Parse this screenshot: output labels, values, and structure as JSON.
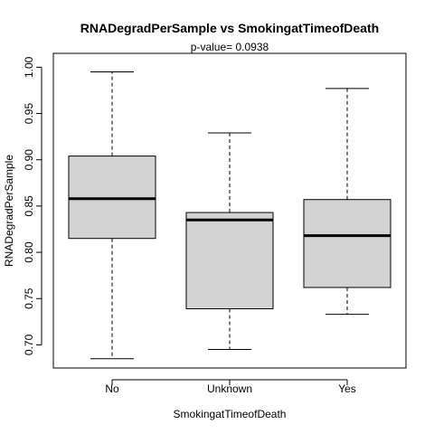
{
  "chart_data": {
    "type": "boxplot",
    "title": "RNADegradPerSample  vs  SmokingatTimeofDeath",
    "subtitle": "p-value= 0.0938",
    "xlabel": "SmokingatTimeofDeath",
    "ylabel": "RNADegradPerSample",
    "ylim": [
      0.675,
      1.015
    ],
    "yticks": [
      0.7,
      0.75,
      0.8,
      0.85,
      0.9,
      0.95,
      1.0
    ],
    "ytick_labels": [
      "0.70",
      "0.75",
      "0.80",
      "0.85",
      "0.90",
      "0.95",
      "1.00"
    ],
    "categories": [
      "No",
      "Unknown",
      "Yes"
    ],
    "boxes": [
      {
        "category": "No",
        "whisker_low": 0.685,
        "q1": 0.815,
        "median": 0.858,
        "q3": 0.904,
        "whisker_high": 0.995
      },
      {
        "category": "Unknown",
        "whisker_low": 0.695,
        "q1": 0.739,
        "median": 0.835,
        "q3": 0.843,
        "whisker_high": 0.929
      },
      {
        "category": "Yes",
        "whisker_low": 0.733,
        "q1": 0.762,
        "median": 0.818,
        "q3": 0.857,
        "whisker_high": 0.977
      }
    ],
    "box_fill": "#d3d3d3",
    "line_color": "#000000",
    "grid": false,
    "legend": "none"
  }
}
